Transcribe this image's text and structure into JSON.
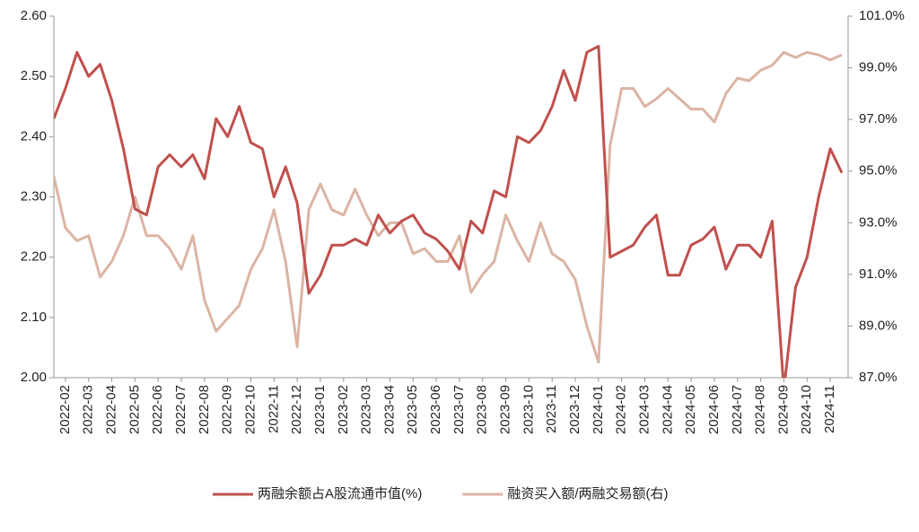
{
  "chart_data": {
    "type": "line",
    "categories": [
      null,
      "2022-02",
      null,
      "2022-03",
      null,
      "2022-04",
      null,
      "2022-05",
      null,
      "2022-06",
      null,
      "2022-07",
      null,
      "2022-08",
      null,
      "2022-09",
      null,
      "2022-10",
      null,
      "2022-11",
      null,
      "2022-12",
      null,
      "2023-01",
      null,
      "2023-02",
      null,
      "2023-03",
      null,
      "2023-04",
      null,
      "2023-05",
      null,
      "2023-06",
      null,
      "2023-07",
      null,
      "2023-08",
      null,
      "2023-09",
      null,
      "2023-10",
      null,
      "2023-11",
      null,
      "2023-12",
      null,
      "2024-01",
      null,
      "2024-02",
      null,
      "2024-03",
      null,
      "2024-04",
      null,
      "2024-05",
      null,
      "2024-06",
      null,
      "2024-07",
      null,
      "2024-08",
      null,
      "2024-09",
      null,
      "2024-10",
      null,
      "2024-11",
      null
    ],
    "series": [
      {
        "name": "两融余额占A股流通市值(%)",
        "color": "#c0504d",
        "values": [
          2.43,
          2.48,
          2.54,
          2.5,
          2.52,
          2.46,
          2.38,
          2.28,
          2.27,
          2.35,
          2.37,
          2.35,
          2.37,
          2.33,
          2.43,
          2.4,
          2.45,
          2.39,
          2.38,
          2.3,
          2.35,
          2.29,
          2.14,
          2.17,
          2.22,
          2.22,
          2.23,
          2.22,
          2.27,
          2.24,
          2.26,
          2.27,
          2.24,
          2.23,
          2.21,
          2.18,
          2.26,
          2.24,
          2.31,
          2.3,
          2.4,
          2.39,
          2.41,
          2.45,
          2.51,
          2.46,
          2.54,
          2.55,
          2.2,
          2.21,
          2.22,
          2.25,
          2.27,
          2.17,
          2.17,
          2.22,
          2.23,
          2.25,
          2.18,
          2.22,
          2.22,
          2.2,
          2.26,
          1.98,
          2.15,
          2.2,
          2.3,
          2.38,
          2.34
        ]
      },
      {
        "name": "融资买入额/两融交易额(右)",
        "color": "#dcb4a4",
        "axis": "y2",
        "values": [
          94.8,
          92.8,
          92.3,
          92.5,
          90.9,
          91.5,
          92.5,
          94.0,
          92.5,
          92.5,
          92.0,
          91.2,
          92.5,
          90.0,
          88.8,
          89.3,
          89.8,
          91.2,
          92.0,
          93.5,
          91.5,
          88.2,
          93.5,
          94.5,
          93.5,
          93.3,
          94.3,
          93.3,
          92.5,
          93.0,
          93.0,
          91.8,
          92.0,
          91.5,
          91.5,
          92.5,
          90.3,
          91.0,
          91.5,
          93.3,
          92.3,
          91.5,
          93.0,
          91.8,
          91.5,
          90.8,
          89.0,
          87.6,
          96.0,
          98.2,
          98.2,
          97.5,
          97.8,
          98.2,
          97.8,
          97.4,
          97.4,
          96.9,
          98.0,
          98.6,
          98.5,
          98.9,
          99.1,
          99.6,
          99.4,
          99.6,
          99.5,
          99.3,
          99.5
        ]
      }
    ],
    "ylim": [
      2.0,
      2.6
    ],
    "yticks": [
      {
        "value": 2.0,
        "label": "2.00"
      },
      {
        "value": 2.1,
        "label": "2.10"
      },
      {
        "value": 2.2,
        "label": "2.20"
      },
      {
        "value": 2.3,
        "label": "2.30"
      },
      {
        "value": 2.4,
        "label": "2.40"
      },
      {
        "value": 2.5,
        "label": "2.50"
      },
      {
        "value": 2.6,
        "label": "2.60"
      }
    ],
    "y2lim": [
      87,
      101
    ],
    "y2ticks": [
      {
        "value": 87,
        "label": "87.0%"
      },
      {
        "value": 89,
        "label": "89.0%"
      },
      {
        "value": 91,
        "label": "91.0%"
      },
      {
        "value": 93,
        "label": "93.0%"
      },
      {
        "value": 95,
        "label": "95.0%"
      },
      {
        "value": 97,
        "label": "97.0%"
      },
      {
        "value": 99,
        "label": "99.0%"
      },
      {
        "value": 101,
        "label": "101.0%"
      }
    ],
    "legend": "bottom"
  }
}
